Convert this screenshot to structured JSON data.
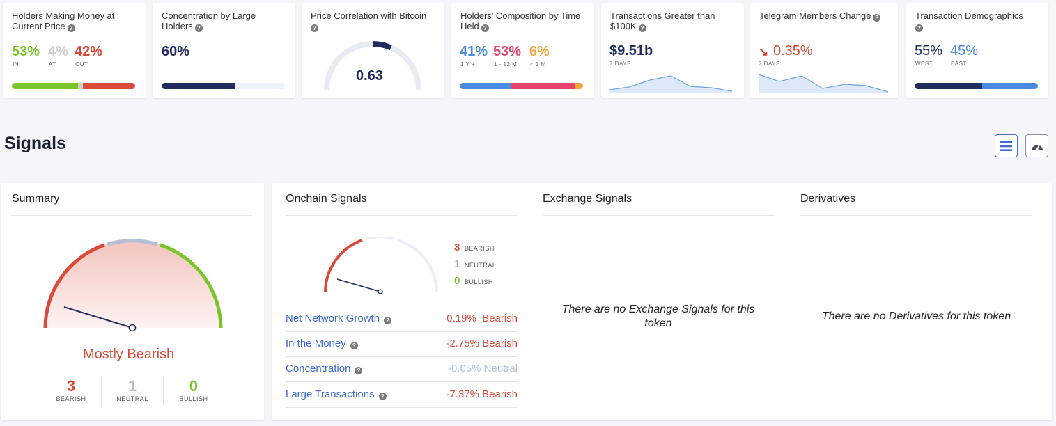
{
  "colors": {
    "green": "#7ac62a",
    "red": "#d94a38",
    "gray": "#cfcfcf",
    "navy": "#1f2c5c",
    "blue": "#4a8ae0",
    "pink": "#e5436b",
    "orange": "#f3a43b",
    "neutral": "#b4bfd6"
  },
  "cards": {
    "holders_money": {
      "title": "Holders Making Money at Current Price",
      "in_pct": "53%",
      "at_pct": "4%",
      "out_pct": "42%",
      "in_label": "IN",
      "at_label": "AT",
      "out_label": "OUT",
      "in_fraction": 0.53,
      "at_fraction": 0.04,
      "out_fraction": 0.42
    },
    "concentration": {
      "title": "Concentration by Large Holders",
      "value": "60%",
      "fraction": 0.6
    },
    "correlation": {
      "title": "Price Correlation with Bitcoin",
      "value": "0.63",
      "fraction": 0.63
    },
    "composition": {
      "title": "Holders' Composition by Time Held",
      "long_pct": "41%",
      "mid_pct": "53%",
      "short_pct": "6%",
      "long_label": "1 Y +",
      "mid_label": "1 - 12 M",
      "short_label": "< 1 M",
      "long_fraction": 0.41,
      "mid_fraction": 0.53,
      "short_fraction": 0.06
    },
    "transactions": {
      "title": "Transactions Greater than $100K",
      "value": "$9.51b",
      "period": "7 DAYS"
    },
    "telegram": {
      "title": "Telegram Members Change",
      "value": "0.35%",
      "period": "7 DAYS",
      "arrow_icon": "arrow-down-right-icon"
    },
    "demographics": {
      "title": "Transaction Demographics",
      "west_pct": "55%",
      "east_pct": "45%",
      "west_label": "WEST",
      "east_label": "EAST",
      "west_fraction": 0.55,
      "east_fraction": 0.45
    }
  },
  "signals": {
    "heading": "Signals",
    "list_view_icon": "list-icon",
    "gauge_view_icon": "gauge-icon",
    "summary": {
      "title": "Summary",
      "verdict": "Mostly Bearish",
      "bearish_count": "3",
      "neutral_count": "1",
      "bullish_count": "0",
      "bearish_label": "BEARISH",
      "neutral_label": "NEUTRAL",
      "bullish_label": "BULLISH"
    },
    "onchain": {
      "title": "Onchain Signals",
      "bearish_count": "3",
      "neutral_count": "1",
      "bullish_count": "0",
      "bearish_label": "BEARISH",
      "neutral_label": "NEUTRAL",
      "bullish_label": "BULLISH",
      "rows": [
        {
          "name": "Net Network Growth",
          "value": "0.19%",
          "verdict": "Bearish"
        },
        {
          "name": "In the Money",
          "value": "-2.75%",
          "verdict": "Bearish"
        },
        {
          "name": "Concentration",
          "value": "-0.05%",
          "verdict": "Neutral"
        },
        {
          "name": "Large Transactions",
          "value": "-7.37%",
          "verdict": "Bearish"
        }
      ]
    },
    "exchange": {
      "title": "Exchange Signals",
      "empty_text": "There are no Exchange Signals for this token"
    },
    "derivatives": {
      "title": "Derivatives",
      "empty_text": "There are no Derivatives for this token"
    }
  }
}
